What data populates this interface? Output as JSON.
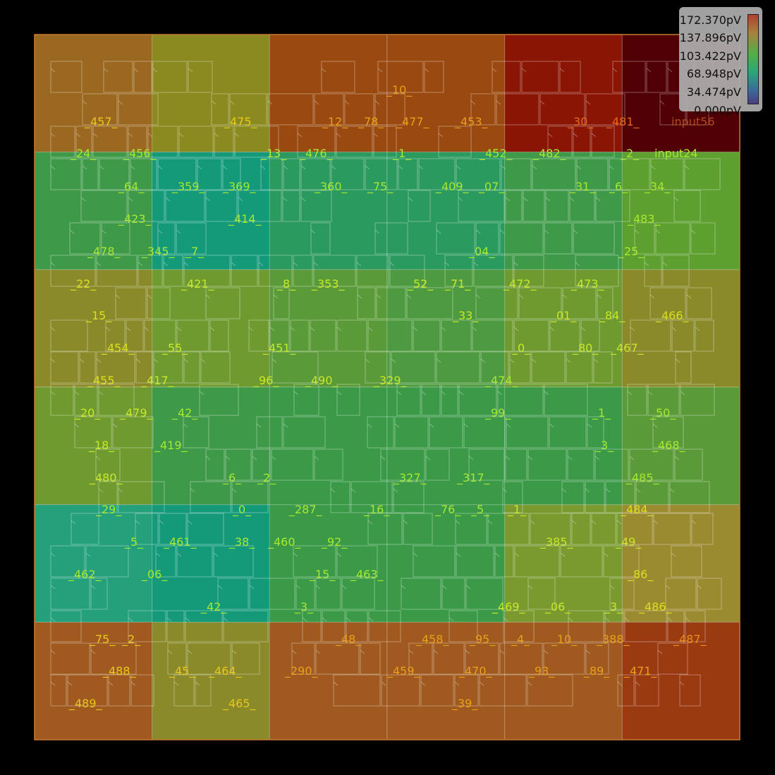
{
  "legend": {
    "ticks": [
      "172.370pV",
      "137.896pV",
      "103.422pV",
      "68.948pV",
      "34.474pV",
      "0.000pV"
    ],
    "colors": [
      "#b04030",
      "#a8803a",
      "#50b048",
      "#2aa57a",
      "#3a6a9a",
      "#4a3e80"
    ]
  },
  "heatmap": {
    "rows": 6,
    "cols": 6,
    "colors": [
      [
        "#9a6820",
        "#8a8a20",
        "#9a4a10",
        "#9a4a10",
        "#8a1505",
        "#500005"
      ],
      [
        "#3e9a48",
        "#149a78",
        "#2a9a5e",
        "#2a9a5e",
        "#3e9a48",
        "#5ea030"
      ],
      [
        "#8a8a2a",
        "#6e9a30",
        "#5a9a38",
        "#4e9a40",
        "#6e9a30",
        "#8a8a2a"
      ],
      [
        "#6e9a30",
        "#3e9a48",
        "#3a9a48",
        "#3a9a48",
        "#3a9a48",
        "#5a9a38"
      ],
      [
        "#24a07a",
        "#149a78",
        "#3a9a48",
        "#3a9a48",
        "#7a9a30",
        "#9a8a30"
      ],
      [
        "#a05a20",
        "#8a8a2a",
        "#a05a20",
        "#a05a20",
        "#a05a20",
        "#9a3a10"
      ]
    ]
  },
  "labels": [
    {
      "t": "_457_",
      "c": "#e8c81a"
    },
    {
      "t": "_475_",
      "c": "#e8c81a"
    },
    {
      "t": "_10_",
      "c": "#e8a01a"
    },
    {
      "t": "_12_",
      "c": "#e8a01a"
    },
    {
      "t": "_78_",
      "c": "#e8a01a"
    },
    {
      "t": "_477_",
      "c": "#e8a01a"
    },
    {
      "t": "_453_",
      "c": "#e8a01a"
    },
    {
      "t": "_30_",
      "c": "#e86a1a"
    },
    {
      "t": "_481_",
      "c": "#e86a1a"
    },
    {
      "t": "input56",
      "c": "#b04a20"
    },
    {
      "t": "_24_",
      "c": "#a8e830"
    },
    {
      "t": "_456_",
      "c": "#a8e830"
    },
    {
      "t": "_13_",
      "c": "#a8e830"
    },
    {
      "t": "_476_",
      "c": "#a8e830"
    },
    {
      "t": "_1_",
      "c": "#a8e830"
    },
    {
      "t": "_452_",
      "c": "#a8e830"
    },
    {
      "t": "_482_",
      "c": "#a8e830"
    },
    {
      "t": "_2_",
      "c": "#a8e830"
    },
    {
      "t": "input24",
      "c": "#a8e830"
    },
    {
      "t": "_64_",
      "c": "#a8e830"
    },
    {
      "t": "_359_",
      "c": "#a8e830"
    },
    {
      "t": "_369_",
      "c": "#a8e830"
    },
    {
      "t": "_360_",
      "c": "#a8e830"
    },
    {
      "t": "_75_",
      "c": "#a8e830"
    },
    {
      "t": "_409_",
      "c": "#a8e830"
    },
    {
      "t": "_07_",
      "c": "#a8e830"
    },
    {
      "t": "_31_",
      "c": "#a8e830"
    },
    {
      "t": "_6_",
      "c": "#a8e830"
    },
    {
      "t": "_34_",
      "c": "#a8e830"
    },
    {
      "t": "_423_",
      "c": "#a8e830"
    },
    {
      "t": "_414_",
      "c": "#a8e830"
    },
    {
      "t": "_483_",
      "c": "#a8e830"
    },
    {
      "t": "_478_",
      "c": "#a8e830"
    },
    {
      "t": "_345_",
      "c": "#a8e830"
    },
    {
      "t": "_7_",
      "c": "#a8e830"
    },
    {
      "t": "_04_",
      "c": "#a8e830"
    },
    {
      "t": "_25_",
      "c": "#a8e830"
    },
    {
      "t": "_22_",
      "c": "#d8e020"
    },
    {
      "t": "_421_",
      "c": "#c8e828"
    },
    {
      "t": "_8_",
      "c": "#c8e828"
    },
    {
      "t": "_353_",
      "c": "#c8e828"
    },
    {
      "t": "_52_",
      "c": "#c8e828"
    },
    {
      "t": "_71_",
      "c": "#c8e828"
    },
    {
      "t": "_472_",
      "c": "#c8e828"
    },
    {
      "t": "_473_",
      "c": "#c8e828"
    },
    {
      "t": "_15_",
      "c": "#d8e020"
    },
    {
      "t": "_33_",
      "c": "#c8e828"
    },
    {
      "t": "_01_",
      "c": "#c8e828"
    },
    {
      "t": "_84_",
      "c": "#c8e828"
    },
    {
      "t": "_466_",
      "c": "#d8e020"
    },
    {
      "t": "_454_",
      "c": "#d8e020"
    },
    {
      "t": "_55_",
      "c": "#c8e828"
    },
    {
      "t": "_451_",
      "c": "#c8e828"
    },
    {
      "t": "_0_",
      "c": "#c8e828"
    },
    {
      "t": "_80_",
      "c": "#c8e828"
    },
    {
      "t": "_467_",
      "c": "#c8e828"
    },
    {
      "t": "_455_",
      "c": "#d8e020"
    },
    {
      "t": "_417_",
      "c": "#c8e828"
    },
    {
      "t": "_96_",
      "c": "#c8e828"
    },
    {
      "t": "_490_",
      "c": "#c8e828"
    },
    {
      "t": "_329_",
      "c": "#c8e828"
    },
    {
      "t": "_474_",
      "c": "#a8e830"
    },
    {
      "t": "_20_",
      "c": "#c8e828"
    },
    {
      "t": "_479_",
      "c": "#c8e828"
    },
    {
      "t": "_42_",
      "c": "#a8e830"
    },
    {
      "t": "_99_",
      "c": "#a8e830"
    },
    {
      "t": "_1_",
      "c": "#a8e830"
    },
    {
      "t": "_50_",
      "c": "#a8e830"
    },
    {
      "t": "_18_",
      "c": "#c8e828"
    },
    {
      "t": "_419_",
      "c": "#a8e830"
    },
    {
      "t": "_3_",
      "c": "#a8e830"
    },
    {
      "t": "_468_",
      "c": "#a8e830"
    },
    {
      "t": "_6_",
      "c": "#a8e830"
    },
    {
      "t": "_2_",
      "c": "#a8e830"
    },
    {
      "t": "_327_",
      "c": "#a8e830"
    },
    {
      "t": "_317_",
      "c": "#a8e830"
    },
    {
      "t": "_480_",
      "c": "#c8e828"
    },
    {
      "t": "_485_",
      "c": "#a8e830"
    },
    {
      "t": "_29_",
      "c": "#a8e830"
    },
    {
      "t": "_0_",
      "c": "#a8e830"
    },
    {
      "t": "_287_",
      "c": "#a8e830"
    },
    {
      "t": "_16_",
      "c": "#a8e830"
    },
    {
      "t": "_76_",
      "c": "#a8e830"
    },
    {
      "t": "_5_",
      "c": "#a8e830"
    },
    {
      "t": "_1_",
      "c": "#c8e828"
    },
    {
      "t": "_484_",
      "c": "#d8e020"
    },
    {
      "t": "_5_",
      "c": "#a8e830"
    },
    {
      "t": "_461_",
      "c": "#a8e830"
    },
    {
      "t": "_38_",
      "c": "#a8e830"
    },
    {
      "t": "_460_",
      "c": "#a8e830"
    },
    {
      "t": "_92_",
      "c": "#a8e830"
    },
    {
      "t": "_385_",
      "c": "#c8e828"
    },
    {
      "t": "_49_",
      "c": "#c8e828"
    },
    {
      "t": "_462_",
      "c": "#a8e830"
    },
    {
      "t": "_06_",
      "c": "#a8e830"
    },
    {
      "t": "_15_",
      "c": "#a8e830"
    },
    {
      "t": "_463_",
      "c": "#a8e830"
    },
    {
      "t": "_86_",
      "c": "#d8e020"
    },
    {
      "t": "_42_",
      "c": "#a8e830"
    },
    {
      "t": "_3_",
      "c": "#a8e830"
    },
    {
      "t": "_469_",
      "c": "#c8e828"
    },
    {
      "t": "_06_",
      "c": "#c8e828"
    },
    {
      "t": "_3_",
      "c": "#c8e828"
    },
    {
      "t": "_486_",
      "c": "#d8e020"
    },
    {
      "t": "_75_",
      "c": "#e8c81a"
    },
    {
      "t": "_2_",
      "c": "#e8c81a"
    },
    {
      "t": "_48_",
      "c": "#e8a01a"
    },
    {
      "t": "_458_",
      "c": "#e8a01a"
    },
    {
      "t": "_95_",
      "c": "#e8a01a"
    },
    {
      "t": "_4_",
      "c": "#e8a01a"
    },
    {
      "t": "_10_",
      "c": "#e8a01a"
    },
    {
      "t": "_388_",
      "c": "#e8a01a"
    },
    {
      "t": "_487_",
      "c": "#e8901a"
    },
    {
      "t": "_488_",
      "c": "#e8c81a"
    },
    {
      "t": "_45_",
      "c": "#e8c81a"
    },
    {
      "t": "_464_",
      "c": "#e8c81a"
    },
    {
      "t": "_290_",
      "c": "#e8a01a"
    },
    {
      "t": "_459_",
      "c": "#e8a01a"
    },
    {
      "t": "_470_",
      "c": "#e8a01a"
    },
    {
      "t": "_93_",
      "c": "#e8a01a"
    },
    {
      "t": "_89_",
      "c": "#e8a01a"
    },
    {
      "t": "_471_",
      "c": "#e8a01a"
    },
    {
      "t": "_489_",
      "c": "#e8c81a"
    },
    {
      "t": "_465_",
      "c": "#e8c81a"
    },
    {
      "t": "_39_",
      "c": "#e8a01a"
    }
  ]
}
